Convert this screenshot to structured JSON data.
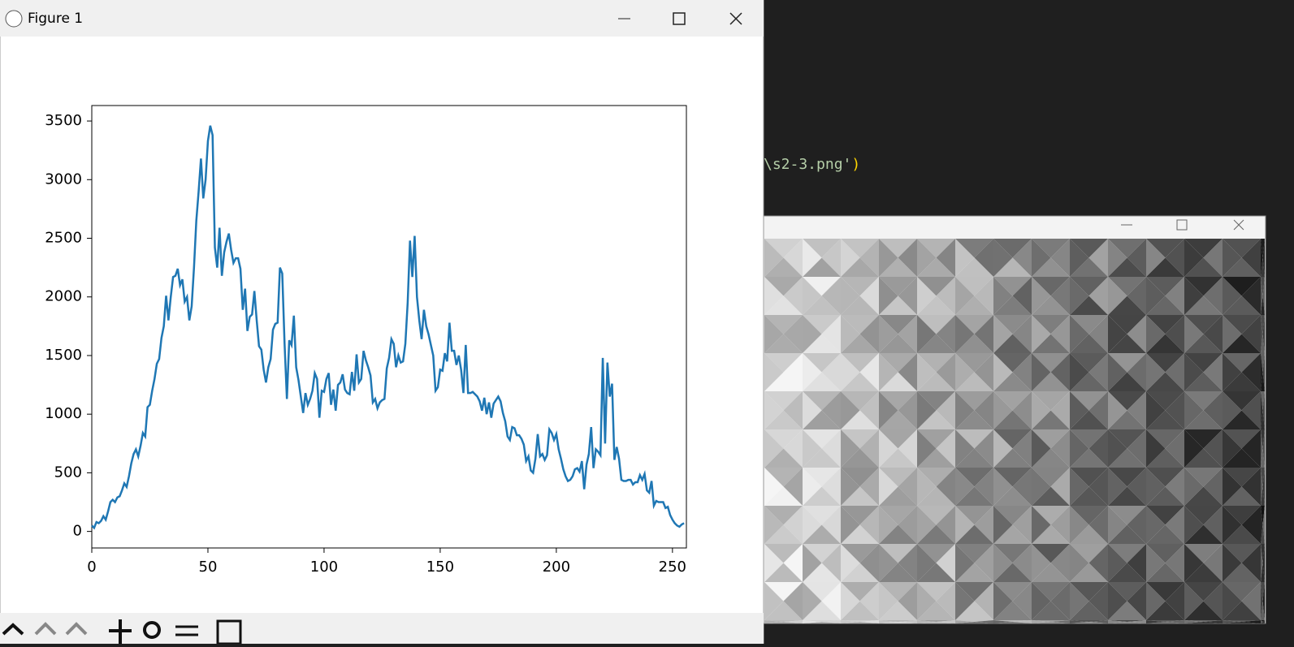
{
  "window": {
    "title": "Figure 1"
  },
  "code": {
    "string": "\\s2-3.png'",
    "paren": ")"
  },
  "chart_data": {
    "type": "line",
    "values": [
      50,
      30,
      80,
      70,
      90,
      130,
      100,
      170,
      250,
      270,
      250,
      290,
      300,
      350,
      410,
      380,
      470,
      580,
      660,
      700,
      640,
      730,
      840,
      810,
      1060,
      1080,
      1200,
      1300,
      1430,
      1470,
      1650,
      1750,
      2010,
      1800,
      2000,
      2170,
      2180,
      2240,
      2100,
      2150,
      1960,
      2000,
      1800,
      1920,
      2250,
      2650,
      2900,
      3180,
      2840,
      3000,
      3330,
      3460,
      3380,
      2420,
      2250,
      2590,
      2180,
      2380,
      2470,
      2540,
      2400,
      2290,
      2330,
      2330,
      2240,
      1890,
      2070,
      1710,
      1830,
      1850,
      2050,
      1800,
      1580,
      1550,
      1380,
      1270,
      1400,
      1470,
      1720,
      1770,
      1780,
      2250,
      2200,
      1600,
      1130,
      1630,
      1590,
      1840,
      1400,
      1290,
      1150,
      1010,
      1180,
      1080,
      1130,
      1200,
      1350,
      1300,
      970,
      1200,
      1190,
      1300,
      1350,
      1080,
      1210,
      1030,
      1250,
      1270,
      1340,
      1210,
      1180,
      1170,
      1360,
      1200,
      1510,
      1270,
      1300,
      1540,
      1460,
      1400,
      1330,
      1100,
      1130,
      1050,
      1100,
      1120,
      1130,
      1390,
      1480,
      1640,
      1600,
      1400,
      1500,
      1440,
      1450,
      1600,
      1950,
      2480,
      2170,
      2520,
      2000,
      1800,
      1640,
      1890,
      1750,
      1680,
      1590,
      1500,
      1200,
      1230,
      1380,
      1370,
      1520,
      1450,
      1780,
      1540,
      1540,
      1420,
      1500,
      1380,
      1180,
      1590,
      1180,
      1180,
      1190,
      1170,
      1150,
      1110,
      1030,
      1140,
      1000,
      1100,
      970,
      1090,
      1120,
      1150,
      1110,
      1010,
      940,
      810,
      780,
      890,
      880,
      820,
      820,
      790,
      740,
      600,
      640,
      520,
      500,
      620,
      830,
      640,
      660,
      610,
      650,
      870,
      840,
      780,
      830,
      700,
      620,
      530,
      470,
      430,
      440,
      470,
      530,
      540,
      510,
      600,
      360,
      570,
      660,
      890,
      540,
      700,
      680,
      650,
      1480,
      750,
      1440,
      1150,
      1260,
      610,
      720,
      620,
      440,
      430,
      430,
      440,
      440,
      400,
      420,
      420,
      480,
      440,
      490,
      350,
      330,
      430,
      220,
      260,
      250,
      250,
      250,
      200,
      210,
      140,
      100,
      70,
      50,
      40,
      60,
      70
    ],
    "color": "#1f77b4",
    "xlim": [
      0,
      256
    ],
    "ylim": [
      -141,
      3632
    ],
    "xticks": [
      0,
      50,
      100,
      150,
      200,
      250
    ],
    "yticks": [
      0,
      500,
      1000,
      1500,
      2000,
      2500,
      3000,
      3500
    ],
    "grid": false
  }
}
